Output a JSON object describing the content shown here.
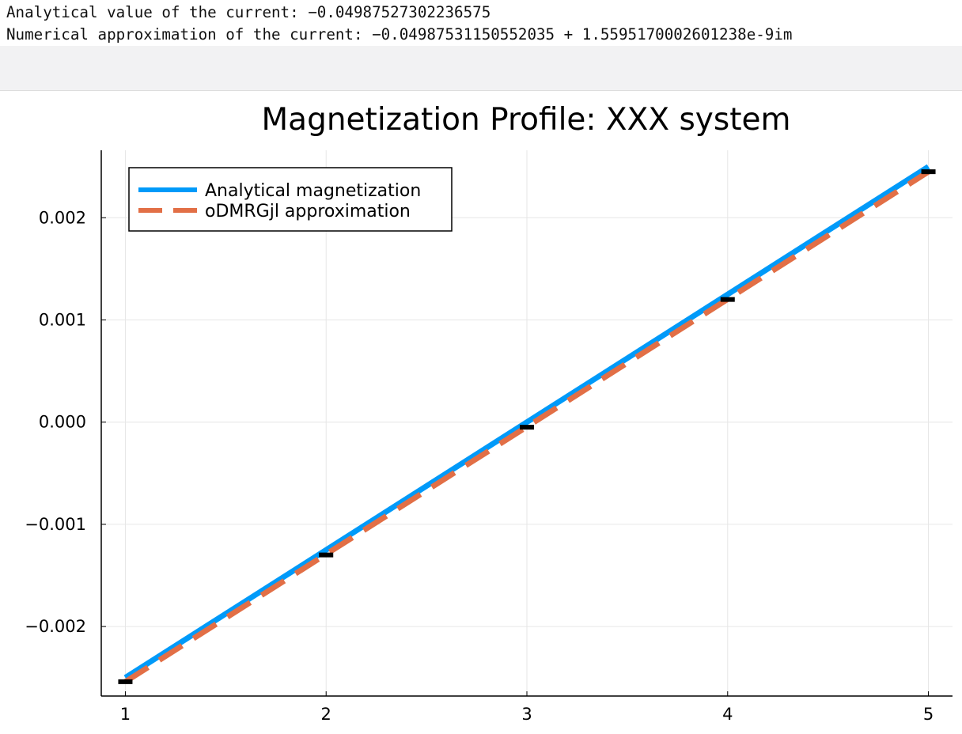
{
  "console": {
    "line1": "Analytical value of the current: −0.04987527302236575",
    "line2": "Numerical approximation of the current: −0.04987531150552035 + 1.5595170002601238e-9im"
  },
  "chart_data": {
    "type": "line",
    "title": "Magnetization Profile: XXX system",
    "xlabel": "",
    "ylabel": "",
    "xlim": [
      0.88,
      5.12
    ],
    "ylim": [
      -0.00268,
      0.00266
    ],
    "x_ticks": [
      "1",
      "2",
      "3",
      "4",
      "5"
    ],
    "y_ticks": [
      "−0.002",
      "−0.001",
      "0.000",
      "0.001",
      "0.002"
    ],
    "y_tick_values": [
      -0.002,
      -0.001,
      0.0,
      0.001,
      0.002
    ],
    "grid": true,
    "legend_position": "top-left",
    "series": [
      {
        "name": "Analytical magnetization",
        "style": "solid",
        "color": "#009AF9",
        "x": [
          1,
          5
        ],
        "y": [
          -0.0025,
          0.0025
        ]
      },
      {
        "name": "oDMRGjl approximation",
        "style": "dashed",
        "color": "#E26F46",
        "x": [
          1,
          5
        ],
        "y": [
          -0.00254,
          0.00245
        ]
      }
    ],
    "markers": {
      "color": "#000000",
      "x": [
        1,
        2,
        3,
        4,
        5
      ],
      "y": [
        -0.00254,
        -0.0013,
        -5e-05,
        0.0012,
        0.00245
      ]
    }
  }
}
